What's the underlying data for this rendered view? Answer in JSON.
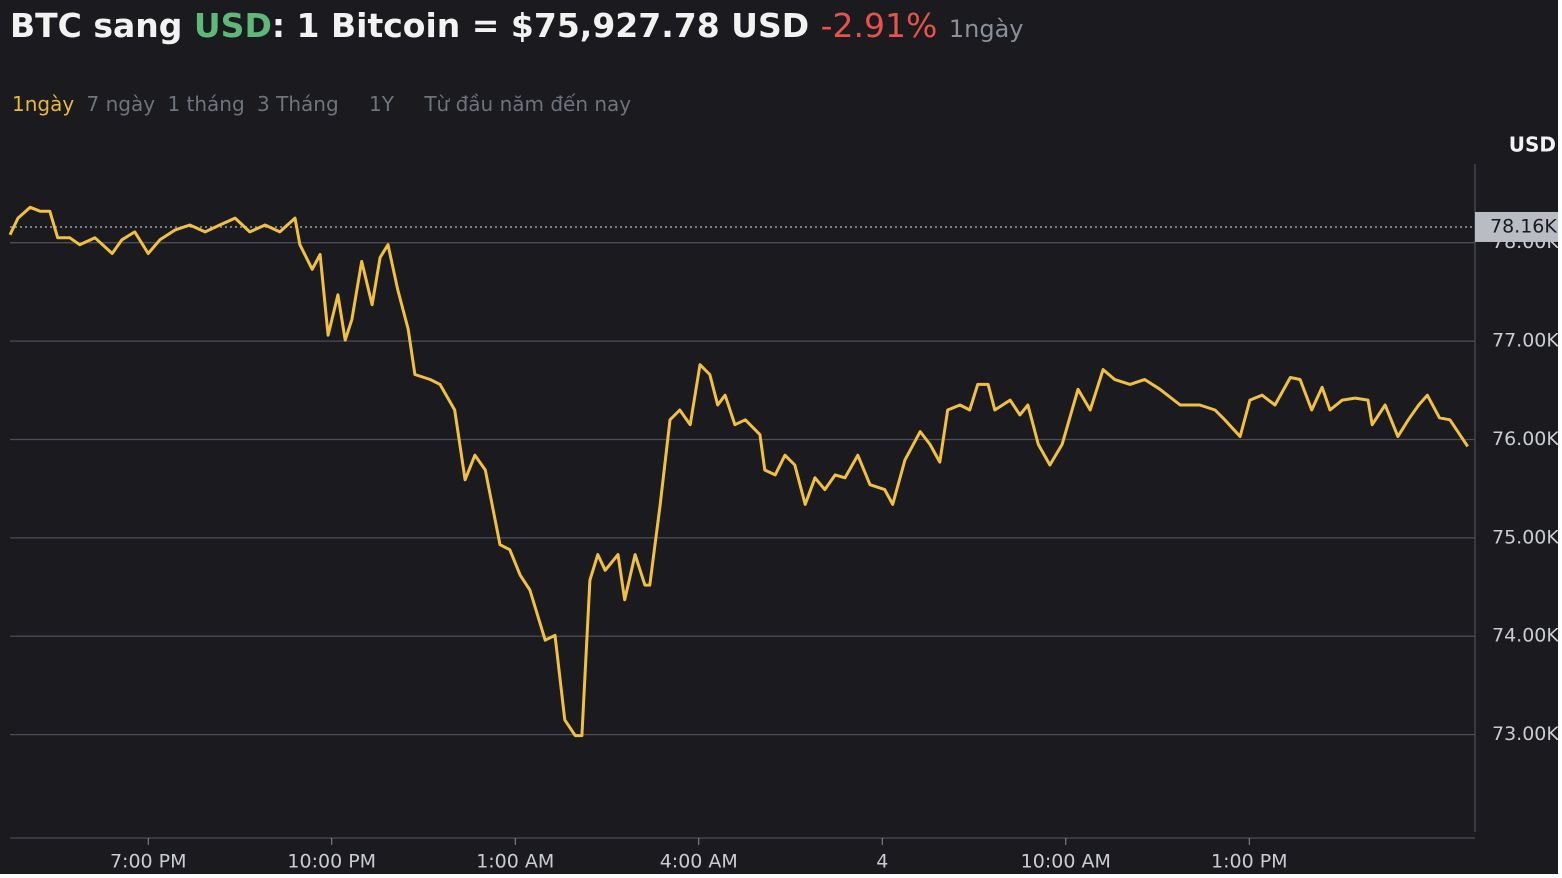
{
  "header": {
    "title_start": "BTC sang ",
    "title_currency": "USD",
    "title_rest": ": 1 Bitcoin = $75,927.78 USD",
    "change": "-2.91%",
    "period": "1ngày"
  },
  "tabs": [
    "1ngày",
    "7 ngày",
    "1 tháng",
    "3 Tháng",
    "1Y",
    "Từ đầu năm đến nay"
  ],
  "chart_data": {
    "type": "line",
    "y_axis_label": "USD",
    "x": [
      16.74,
      16.87,
      17.07,
      17.23,
      17.39,
      17.52,
      17.72,
      17.88,
      18.13,
      18.41,
      18.57,
      18.78,
      19.0,
      19.19,
      19.44,
      19.68,
      19.93,
      20.17,
      20.42,
      20.66,
      20.91,
      21.15,
      21.4,
      21.48,
      21.68,
      21.81,
      21.94,
      22.1,
      22.22,
      22.33,
      22.49,
      22.66,
      22.79,
      22.92,
      23.08,
      23.25,
      23.36,
      23.61,
      23.77,
      24.01,
      24.18,
      24.34,
      24.51,
      24.75,
      24.91,
      25.08,
      25.24,
      25.49,
      25.65,
      25.81,
      25.98,
      26.09,
      26.22,
      26.35,
      26.47,
      26.68,
      26.79,
      26.96,
      27.12,
      27.2,
      27.37,
      27.53,
      27.69,
      27.86,
      28.02,
      28.18,
      28.31,
      28.43,
      28.59,
      28.76,
      29.0,
      29.08,
      29.25,
      29.41,
      29.57,
      29.74,
      29.9,
      30.06,
      30.23,
      30.39,
      30.6,
      30.8,
      31.04,
      31.17,
      31.37,
      31.62,
      31.78,
      31.94,
      32.07,
      32.27,
      32.43,
      32.56,
      32.73,
      32.84,
      33.09,
      33.25,
      33.38,
      33.55,
      33.74,
      33.94,
      34.2,
      34.4,
      34.61,
      34.8,
      35.05,
      35.29,
      35.54,
      35.87,
      36.19,
      36.44,
      36.6,
      36.85,
      37.01,
      37.21,
      37.42,
      37.67,
      37.83,
      38.02,
      38.19,
      38.32,
      38.52,
      38.73,
      38.94,
      39.01,
      39.22,
      39.43,
      39.6,
      39.77,
      39.91,
      40.11,
      40.28,
      40.57
    ],
    "series": [
      {
        "name": "BTC",
        "color": "#f0c03e",
        "values": [
          78080,
          78250,
          78360,
          78320,
          78320,
          78050,
          78050,
          77980,
          78050,
          77890,
          78030,
          78110,
          77890,
          78030,
          78130,
          78180,
          78110,
          78180,
          78250,
          78110,
          78180,
          78110,
          78250,
          77980,
          77730,
          77880,
          77060,
          77470,
          77010,
          77220,
          77810,
          77370,
          77850,
          77980,
          77520,
          77120,
          76660,
          76610,
          76560,
          76300,
          75590,
          75840,
          75690,
          74930,
          74880,
          74620,
          74470,
          73960,
          74010,
          73150,
          72990,
          72990,
          74570,
          74830,
          74670,
          74830,
          74370,
          74830,
          74520,
          74520,
          75340,
          76200,
          76300,
          76150,
          76760,
          76660,
          76350,
          76450,
          76150,
          76200,
          76050,
          75690,
          75640,
          75840,
          75740,
          75340,
          75610,
          75490,
          75640,
          75610,
          75840,
          75540,
          75490,
          75340,
          75790,
          76080,
          75950,
          75770,
          76300,
          76350,
          76300,
          76560,
          76560,
          76300,
          76400,
          76250,
          76350,
          75950,
          75740,
          75950,
          76510,
          76300,
          76710,
          76610,
          76560,
          76610,
          76510,
          76350,
          76350,
          76300,
          76200,
          76030,
          76400,
          76450,
          76350,
          76630,
          76610,
          76300,
          76530,
          76300,
          76400,
          76420,
          76400,
          76150,
          76350,
          76030,
          76200,
          76350,
          76450,
          76220,
          76200,
          75930
        ]
      }
    ],
    "xlim": [
      16.74,
      40.69
    ],
    "xticks": [
      {
        "value": 19,
        "label": "7:00 PM"
      },
      {
        "value": 22,
        "label": "10:00 PM"
      },
      {
        "value": 25,
        "label": "1:00 AM"
      },
      {
        "value": 28,
        "label": "4:00 AM"
      },
      {
        "value": 31,
        "label": "4"
      },
      {
        "value": 34,
        "label": "10:00 AM"
      },
      {
        "value": 37,
        "label": "1:00 PM"
      }
    ],
    "ylim": [
      72000,
      78800
    ],
    "yticks": [
      {
        "value": 73000,
        "label": "73.00K"
      },
      {
        "value": 74000,
        "label": "74.00K"
      },
      {
        "value": 75000,
        "label": "75.00K"
      },
      {
        "value": 76000,
        "label": "76.00K"
      },
      {
        "value": 77000,
        "label": "77.00K"
      },
      {
        "value": 78000,
        "label": "78.00K"
      }
    ],
    "reference_line": {
      "value": 78160,
      "label": "78.16K"
    },
    "grid": true
  }
}
